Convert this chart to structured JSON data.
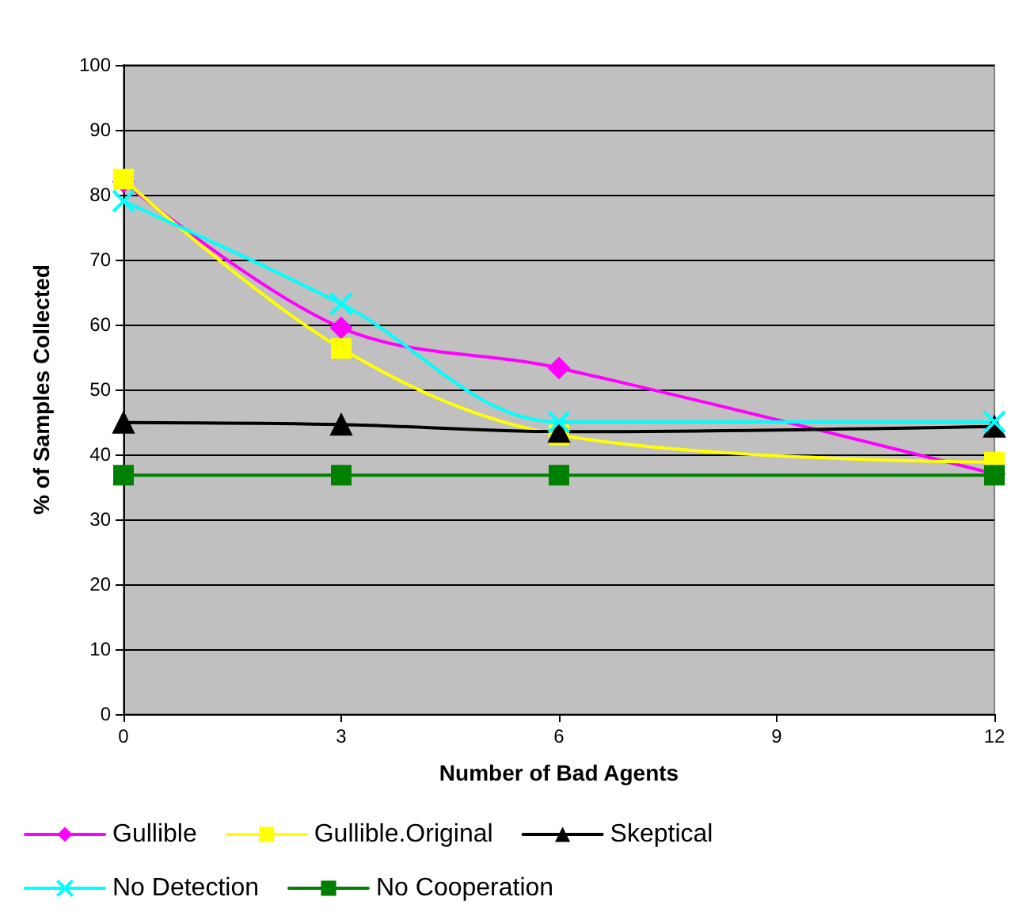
{
  "chart_data": {
    "type": "line",
    "xlabel": "Number of Bad Agents",
    "ylabel": "% of Samples Collected",
    "x": [
      0,
      3,
      6,
      12
    ],
    "xlim": [
      0,
      12
    ],
    "xticks": [
      0,
      3,
      6,
      9,
      12
    ],
    "ylim": [
      0,
      100
    ],
    "yticks": [
      0,
      10,
      20,
      30,
      40,
      50,
      60,
      70,
      80,
      90,
      100
    ],
    "grid": "y",
    "legend": "bottom",
    "line_style": "solid",
    "series": [
      {
        "name": "Gullible",
        "color": "#ff00ff",
        "marker": "diamond",
        "values": [
          82,
          59.5,
          53.3,
          37
        ]
      },
      {
        "name": "Gullible.Original",
        "color": "#ffff00",
        "marker": "square",
        "values": [
          82.4,
          56.3,
          43,
          38.8
        ]
      },
      {
        "name": "Skeptical",
        "color": "#000000",
        "marker": "triangle",
        "values": [
          44.9,
          44.6,
          43.5,
          44.3
        ]
      },
      {
        "name": "No Detection",
        "color": "#00ffff",
        "marker": "cross",
        "values": [
          79,
          63.2,
          45,
          45
        ]
      },
      {
        "name": "No Cooperation",
        "color": "#008000",
        "marker": "square",
        "values": [
          36.8,
          36.8,
          36.8,
          36.8
        ]
      }
    ]
  }
}
